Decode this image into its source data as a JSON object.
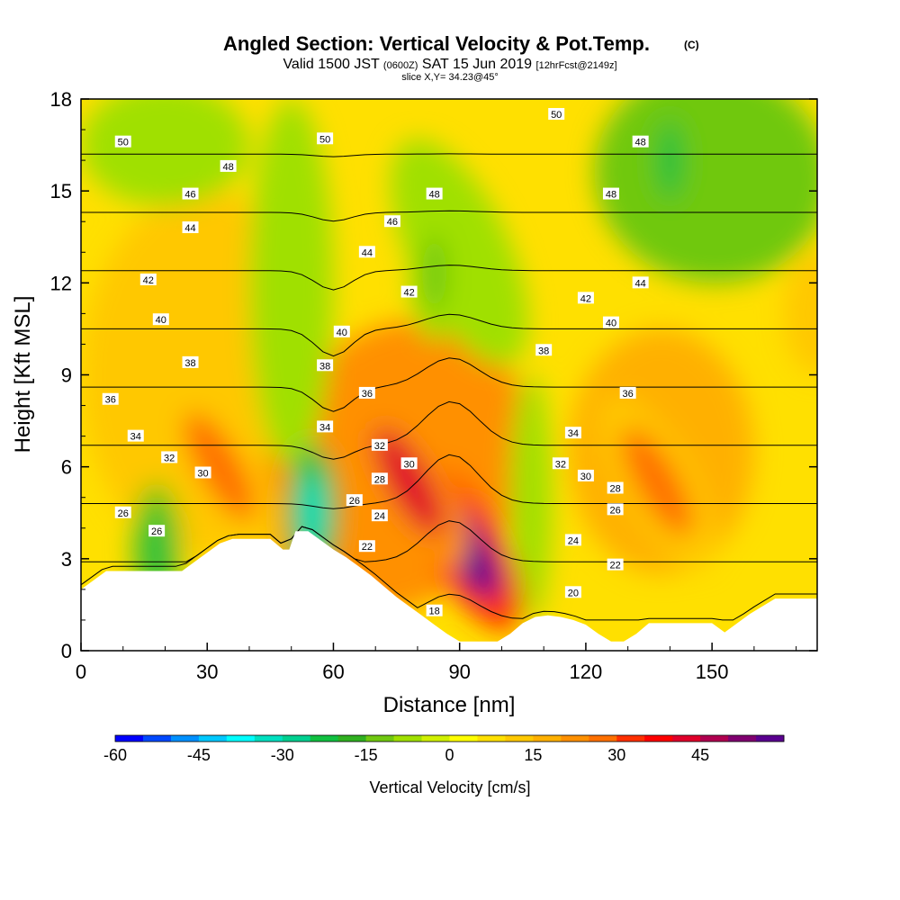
{
  "chart_data": {
    "type": "heatmap",
    "title": "Angled Section: Vertical Velocity & Pot.Temp.",
    "title_mark": "(C)",
    "subtitle_parts": [
      "Valid 1500 JST ",
      "(0600Z)",
      " SAT 15 Jun 2019 ",
      "[12hrFcst@2149z]"
    ],
    "slice_text": "slice X,Y= 34.23@45°",
    "xlabel": "Distance [nm]",
    "ylabel": "Height [Kft MSL]",
    "xlim": [
      0,
      175
    ],
    "ylim": [
      0,
      18
    ],
    "xticks": [
      0,
      30,
      60,
      90,
      120,
      150
    ],
    "yticks": [
      0,
      3,
      6,
      9,
      12,
      15,
      18
    ],
    "colorbar": {
      "title": "Vertical Velocity [cm/s]",
      "range": [
        -60,
        55
      ],
      "step": 5,
      "tick_values": [
        -60,
        -45,
        -30,
        -15,
        0,
        15,
        30,
        45
      ],
      "colors": [
        "#0000ff",
        "#0048ff",
        "#0090ff",
        "#00c8ff",
        "#00ffff",
        "#00e0c0",
        "#00d090",
        "#10c040",
        "#30b020",
        "#70c810",
        "#a0e000",
        "#d0f000",
        "#ffff00",
        "#ffe000",
        "#ffc800",
        "#ffb000",
        "#ff9000",
        "#ff7000",
        "#ff3000",
        "#ff0000",
        "#e0002a",
        "#b00050",
        "#800070",
        "#5a0090"
      ]
    },
    "updraft_cores": [
      {
        "x": 91,
        "z": 3.5,
        "max_cm_s": 55
      },
      {
        "x": 78,
        "z": 5.5,
        "max_cm_s": 40
      },
      {
        "x": 33,
        "z": 6.0,
        "max_cm_s": 25
      },
      {
        "x": 137,
        "z": 5.5,
        "max_cm_s": 25
      }
    ],
    "downdraft_cores": [
      {
        "x": 55,
        "z": 4.5,
        "min_cm_s": -35
      },
      {
        "x": 18,
        "z": 3.3,
        "min_cm_s": -25
      },
      {
        "x": 140,
        "z": 16,
        "min_cm_s": -25
      },
      {
        "x": 84,
        "z": 12.3,
        "min_cm_s": -15
      }
    ],
    "terrain_profile": {
      "x_nm": [
        0,
        3,
        6,
        9,
        18,
        24,
        27,
        30,
        33,
        36,
        45,
        48,
        49.5,
        51,
        54,
        57,
        60,
        63,
        66,
        69,
        72,
        75,
        78,
        81,
        84,
        87,
        90,
        99,
        102,
        105,
        108,
        111,
        114,
        117,
        120,
        123,
        126,
        129,
        132,
        135,
        150,
        153,
        156,
        159,
        162,
        165,
        168,
        175
      ],
      "z_kft": [
        2.0,
        2.3,
        2.6,
        2.6,
        2.6,
        2.6,
        2.9,
        3.2,
        3.5,
        3.65,
        3.65,
        3.3,
        3.3,
        3.9,
        3.9,
        3.6,
        3.3,
        3.05,
        2.75,
        2.45,
        2.1,
        1.75,
        1.45,
        1.15,
        0.85,
        0.55,
        0.3,
        0.3,
        0.55,
        0.9,
        1.1,
        1.15,
        1.1,
        1.0,
        0.85,
        0.55,
        0.3,
        0.3,
        0.55,
        0.9,
        0.9,
        0.6,
        0.9,
        1.2,
        1.45,
        1.7,
        1.7,
        1.7
      ]
    },
    "isentropes": {
      "levels": [
        18,
        20,
        22,
        24,
        26,
        28,
        30,
        32,
        34,
        36,
        38,
        40,
        42,
        44,
        46,
        48,
        50
      ],
      "labels": [
        {
          "text": "50",
          "x": 10,
          "z": 16.6
        },
        {
          "text": "48",
          "x": 35,
          "z": 15.8
        },
        {
          "text": "46",
          "x": 26,
          "z": 14.9
        },
        {
          "text": "44",
          "x": 26,
          "z": 13.8
        },
        {
          "text": "42",
          "x": 16,
          "z": 12.1
        },
        {
          "text": "40",
          "x": 19,
          "z": 10.8
        },
        {
          "text": "38",
          "x": 26,
          "z": 9.4
        },
        {
          "text": "36",
          "x": 7,
          "z": 8.2
        },
        {
          "text": "34",
          "x": 13,
          "z": 7.0
        },
        {
          "text": "32",
          "x": 21,
          "z": 6.3
        },
        {
          "text": "30",
          "x": 29,
          "z": 5.8
        },
        {
          "text": "26",
          "x": 10,
          "z": 4.5
        },
        {
          "text": "26",
          "x": 18,
          "z": 3.9
        },
        {
          "text": "50",
          "x": 58,
          "z": 16.7
        },
        {
          "text": "48",
          "x": 84,
          "z": 14.9
        },
        {
          "text": "46",
          "x": 74,
          "z": 14.0
        },
        {
          "text": "44",
          "x": 68,
          "z": 13.0
        },
        {
          "text": "42",
          "x": 78,
          "z": 11.7
        },
        {
          "text": "40",
          "x": 62,
          "z": 10.4
        },
        {
          "text": "38",
          "x": 58,
          "z": 9.3
        },
        {
          "text": "36",
          "x": 68,
          "z": 8.4
        },
        {
          "text": "34",
          "x": 58,
          "z": 7.3
        },
        {
          "text": "32",
          "x": 71,
          "z": 6.7
        },
        {
          "text": "30",
          "x": 78,
          "z": 6.1
        },
        {
          "text": "28",
          "x": 71,
          "z": 5.6
        },
        {
          "text": "26",
          "x": 65,
          "z": 4.9
        },
        {
          "text": "24",
          "x": 71,
          "z": 4.4
        },
        {
          "text": "22",
          "x": 68,
          "z": 3.4
        },
        {
          "text": "18",
          "x": 84,
          "z": 1.3
        },
        {
          "text": "50",
          "x": 113,
          "z": 17.5
        },
        {
          "text": "48",
          "x": 133,
          "z": 16.6
        },
        {
          "text": "48",
          "x": 126,
          "z": 14.9
        },
        {
          "text": "44",
          "x": 133,
          "z": 12.0
        },
        {
          "text": "42",
          "x": 120,
          "z": 11.5
        },
        {
          "text": "40",
          "x": 126,
          "z": 10.7
        },
        {
          "text": "38",
          "x": 110,
          "z": 9.8
        },
        {
          "text": "36",
          "x": 130,
          "z": 8.4
        },
        {
          "text": "34",
          "x": 117,
          "z": 7.1
        },
        {
          "text": "32",
          "x": 114,
          "z": 6.1
        },
        {
          "text": "30",
          "x": 120,
          "z": 5.7
        },
        {
          "text": "28",
          "x": 127,
          "z": 5.3
        },
        {
          "text": "26",
          "x": 127,
          "z": 4.6
        },
        {
          "text": "24",
          "x": 117,
          "z": 3.6
        },
        {
          "text": "22",
          "x": 127,
          "z": 2.8
        },
        {
          "text": "20",
          "x": 117,
          "z": 1.9
        }
      ]
    }
  }
}
